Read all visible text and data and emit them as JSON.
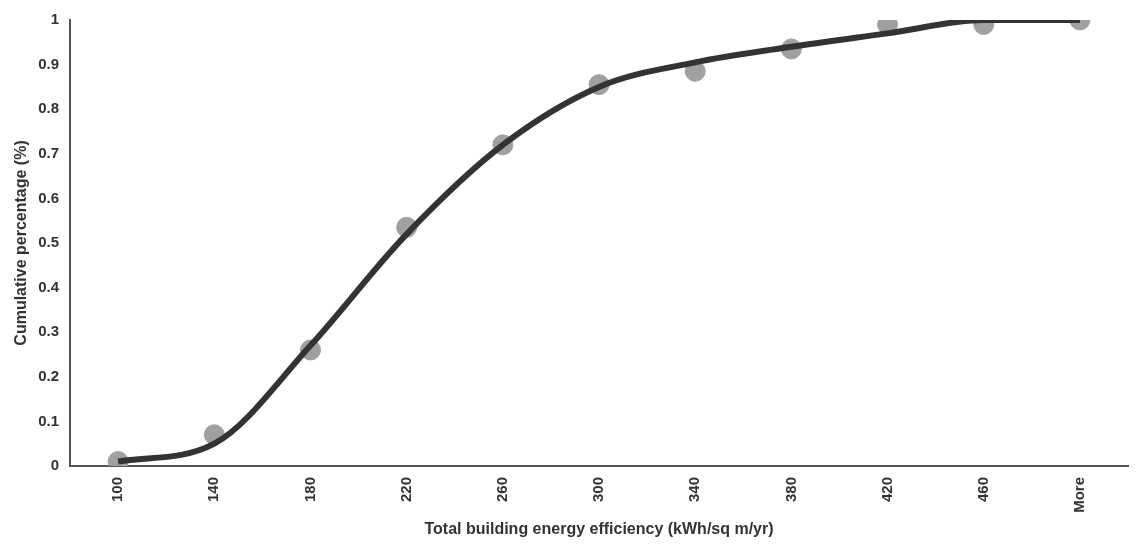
{
  "chart_data": {
    "type": "scatter",
    "xlabel": "Total building energy efficiency (kWh/sq m/yr)",
    "ylabel": "Cumulative percentage (%)",
    "categories": [
      "100",
      "140",
      "180",
      "220",
      "260",
      "300",
      "340",
      "380",
      "420",
      "460",
      "More"
    ],
    "series": [
      {
        "color": "#a0a0a0",
        "values": [
          0.01,
          0.07,
          0.26,
          0.535,
          0.72,
          0.855,
          0.885,
          0.935,
          0.99,
          0.99,
          1.0
        ]
      },
      {
        "type": "line",
        "marker": "none",
        "color": "#333333",
        "values": [
          0.01,
          0.05,
          0.27,
          0.52,
          0.72,
          0.85,
          0.905,
          0.94,
          0.97,
          1.0,
          1.0
        ]
      }
    ],
    "ylim": [
      0,
      1
    ],
    "yticks": [
      0,
      0.1,
      0.2,
      0.3,
      0.4,
      0.5,
      0.6,
      0.7,
      0.8,
      0.9,
      1
    ],
    "grid": false,
    "legend": false,
    "marker": "circle"
  }
}
